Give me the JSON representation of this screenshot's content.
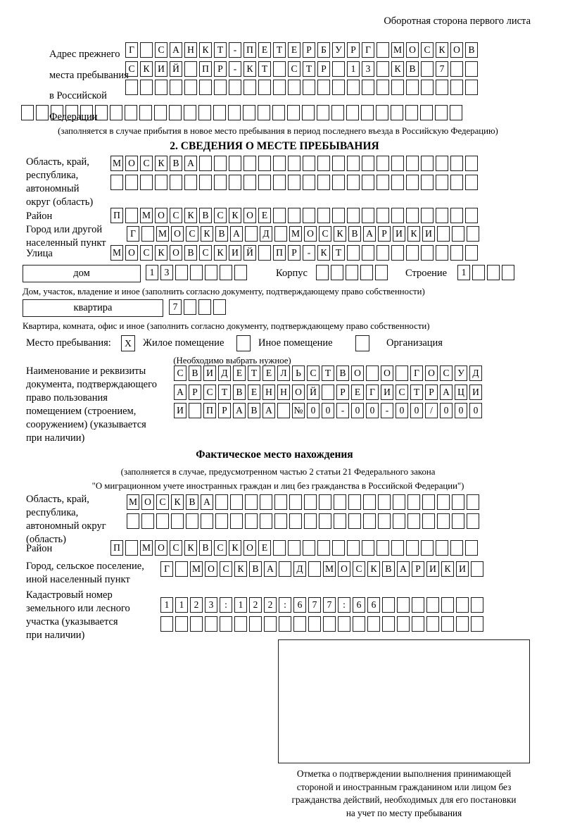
{
  "page_header": "Оборотная сторона первого листа",
  "prev_address": {
    "label": [
      "Адрес прежнего",
      "места пребывания",
      "в Российской",
      "Федерации"
    ],
    "rows": [
      "Г САНКТ-ПЕТЕРБУРГ МОСКОВ",
      "СКИЙ ПР-КТ СТР 13 КВ 7  ",
      "                        "
    ],
    "row_full": "                              ",
    "note": "(заполняется в случае прибытия в новое место пребывания в период последнего въезда в Российскую Федерацию)"
  },
  "section2": {
    "title": "2. СВЕДЕНИЯ О МЕСТЕ ПРЕБЫВАНИЯ",
    "region": {
      "label": [
        "Область, край,",
        "республика,",
        "автономный",
        "округ (область)"
      ],
      "rows": [
        "МОСКВА                   ",
        "                         "
      ]
    },
    "district": {
      "label": "Район",
      "row": "П МОСКВСКОЕ              "
    },
    "city": {
      "label": [
        "Город или другой",
        "населенный пункт"
      ],
      "row": "Г МОСКВА Д МОСКВАРИКИ   "
    },
    "street": {
      "label": "Улица",
      "row": "МОСКОВСКИЙ ПР-КТ         "
    },
    "house": {
      "box_label": "дом",
      "cells": "13     ",
      "korpus_label": "Корпус",
      "korpus_cells": "     ",
      "stroenie_label": "Строение",
      "stroenie_cells": "1   "
    },
    "house_note": "Дом, участок, владение и иное (заполнить согласно документу, подтверждающему право собственности)",
    "apartment": {
      "box_label": "квартира",
      "cells": "7   "
    },
    "apartment_note": "Квартира, комната, офис и иное (заполнить согласно документу, подтверждающему право собственности)",
    "residence": {
      "label": "Место пребывания:",
      "options": [
        {
          "label": "Жилое помещение",
          "mark": "X"
        },
        {
          "label": "Иное помещение",
          "mark": ""
        },
        {
          "label": "Организация",
          "mark": ""
        }
      ],
      "note": "(Необходимо выбрать нужное)"
    },
    "document": {
      "label": [
        "Наименование и реквизиты",
        "документа, подтверждающего",
        "право пользования",
        "помещением (строением,",
        "сооружением) (указывается",
        "при наличии)"
      ],
      "rows": [
        "СВИДЕТЕЛЬСТВО О ГОСУД",
        "АРСТВЕННОЙ РЕГИСТРАЦИ",
        "И ПРАВА №00-00-00/000"
      ]
    }
  },
  "section3": {
    "title": "Фактическое место нахождения",
    "note": [
      "(заполняется в случае, предусмотренном частью 2 статьи 21 Федерального закона",
      "\"О миграционном учете иностранных граждан и лиц без гражданства в Российской Федерации\")"
    ],
    "region": {
      "label": [
        "Область, край,",
        "республика,",
        "автономный округ",
        "(область)"
      ],
      "rows": [
        "МОСКВА                  ",
        "                        "
      ]
    },
    "district": {
      "label": "Район",
      "row": "П МОСКВСКОЕ              "
    },
    "city": {
      "label": [
        "Город, сельское поселение,",
        "иной населенный пункт"
      ],
      "row": "Г МОСКВА Д МОСКВАРИКИ "
    },
    "cadastre": {
      "label": [
        "Кадастровый номер",
        "земельного или лесного",
        "участка (указывается",
        "при наличии)"
      ],
      "rows": [
        "1123:122:677:66       ",
        "                      "
      ]
    },
    "stamp_caption": [
      "Отметка о подтверждении выполнения принимающей",
      "стороной и иностранным гражданином или лицом без",
      "гражданства действий, необходимых для его постановки",
      "на учет по месту пребывания"
    ]
  }
}
